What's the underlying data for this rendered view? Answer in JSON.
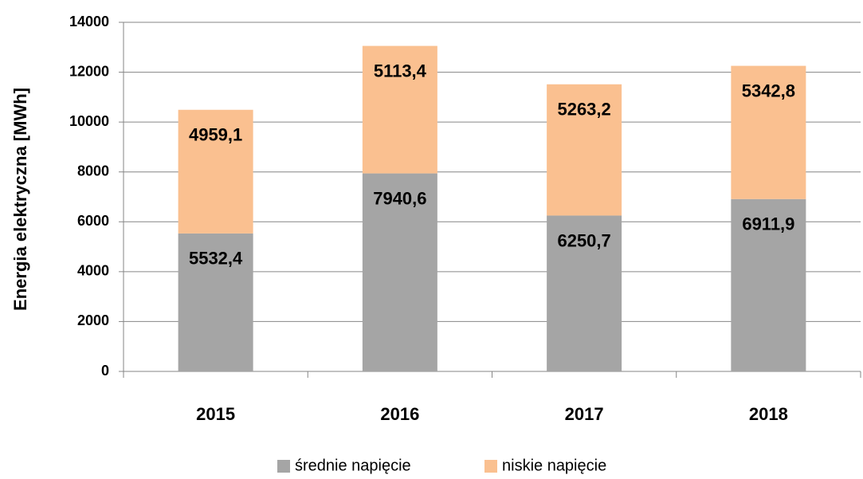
{
  "chart_data": {
    "type": "stacked_bar",
    "y_label": "Energia elektryczna [MWh]",
    "categories": [
      "2015",
      "2016",
      "2017",
      "2018"
    ],
    "series": [
      {
        "name": "średnie napięcie",
        "color": "#a5a5a5",
        "values": [
          5532.4,
          7940.6,
          6250.7,
          6911.9
        ],
        "value_labels": [
          "5532,4",
          "7940,6",
          "6250,7",
          "6911,9"
        ]
      },
      {
        "name": "niskie napięcie",
        "color": "#fac090",
        "values": [
          4959.1,
          5113.4,
          5263.2,
          5342.8
        ],
        "value_labels": [
          "4959,1",
          "5113,4",
          "5263,2",
          "5342,8"
        ]
      }
    ],
    "ylim": [
      0,
      14000
    ],
    "yticks": [
      0,
      2000,
      4000,
      6000,
      8000,
      10000,
      12000,
      14000
    ],
    "grid": true,
    "legend": "bottom"
  }
}
